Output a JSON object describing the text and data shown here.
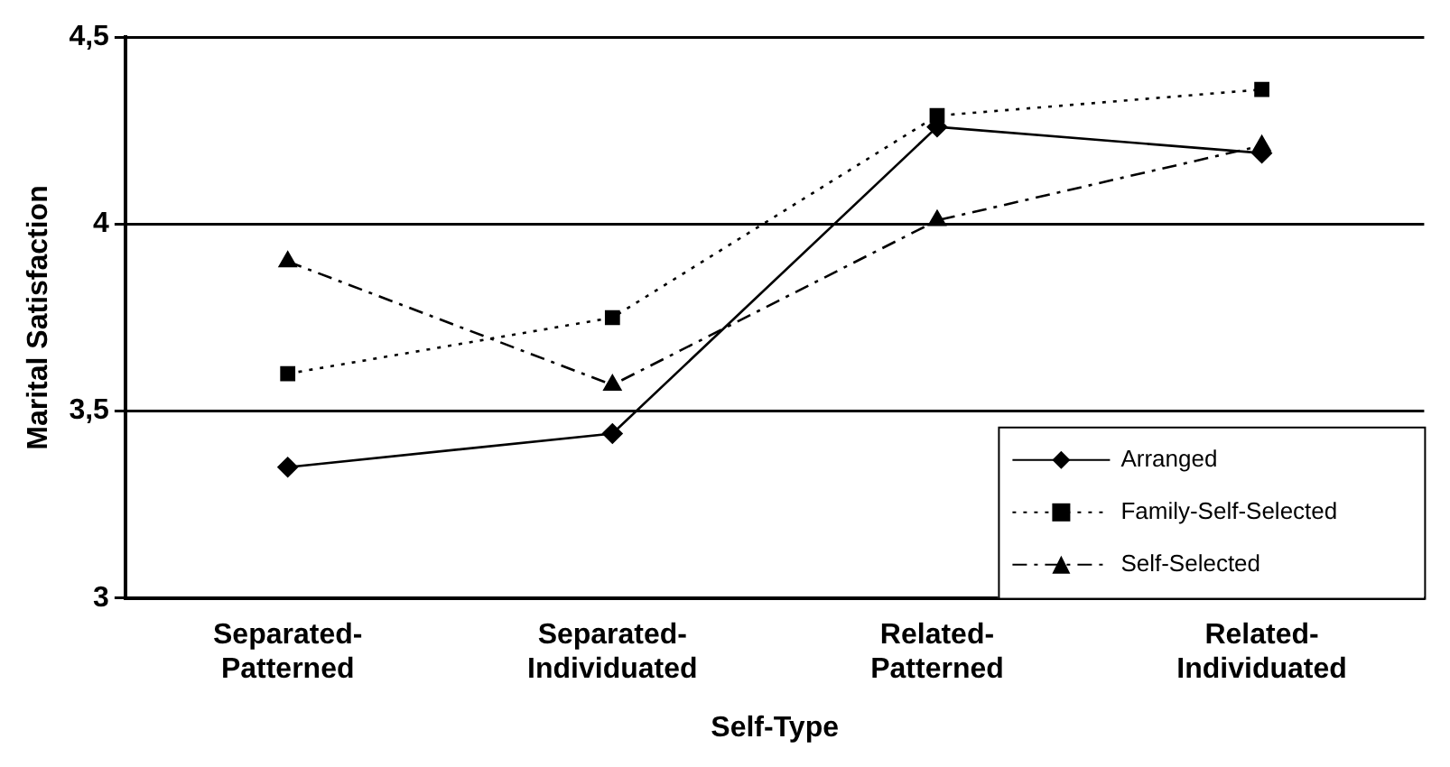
{
  "chart_data": {
    "type": "line",
    "xlabel": "Self-Type",
    "ylabel": "Marital Satisfaction",
    "categories": [
      "Separated-Patterned",
      "Separated-Individuated",
      "Related-Patterned",
      "Related-Individuated"
    ],
    "series": [
      {
        "name": "Arranged",
        "color": "#000000",
        "marker": "diamond",
        "line_style": "solid",
        "values": [
          3.35,
          3.44,
          4.26,
          4.19
        ]
      },
      {
        "name": "Family-Self-Selected",
        "color": "#000000",
        "marker": "square",
        "line_style": "dotted",
        "values": [
          3.6,
          3.75,
          4.29,
          4.36
        ]
      },
      {
        "name": "Self-Selected",
        "color": "#000000",
        "marker": "triangle",
        "line_style": "dashed",
        "values": [
          3.9,
          3.57,
          4.01,
          4.21
        ]
      }
    ],
    "ylim": [
      3,
      4.5
    ],
    "yticks": [
      {
        "value": 3,
        "label": "3"
      },
      {
        "value": 3.5,
        "label": "3,5"
      },
      {
        "value": 4,
        "label": "4"
      },
      {
        "value": 4.5,
        "label": "4,5"
      }
    ],
    "grid": "y",
    "legend": "bottom right"
  }
}
